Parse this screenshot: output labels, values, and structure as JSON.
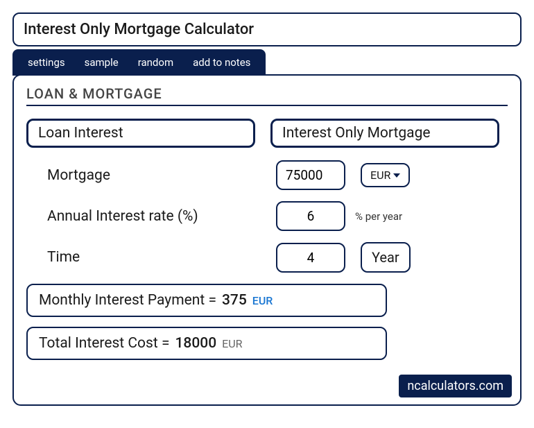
{
  "title": "Interest Only Mortgage Calculator",
  "tabs": {
    "settings": "settings",
    "sample": "sample",
    "random": "random",
    "add_to_notes": "add to notes"
  },
  "section_heading": "LOAN & MORTGAGE",
  "mode_tabs": {
    "loan_interest": "Loan Interest",
    "interest_only_mortgage": "Interest Only Mortgage"
  },
  "fields": {
    "mortgage": {
      "label": "Mortgage",
      "value": "75000",
      "currency": "EUR"
    },
    "annual_rate": {
      "label": "Annual Interest rate (%)",
      "value": "6",
      "unit": "% per year"
    },
    "time": {
      "label": "Time",
      "value": "4",
      "unit": "Year"
    }
  },
  "results": {
    "monthly": {
      "label": "Monthly Interest Payment  =",
      "value": "375",
      "unit": "EUR"
    },
    "total": {
      "label": "Total Interest Cost  =",
      "value": "18000",
      "unit": "EUR"
    }
  },
  "brand": "ncalculators.com",
  "colors": {
    "primary": "#0a1f4d",
    "accent_blue": "#1976d2",
    "gray": "#666"
  }
}
